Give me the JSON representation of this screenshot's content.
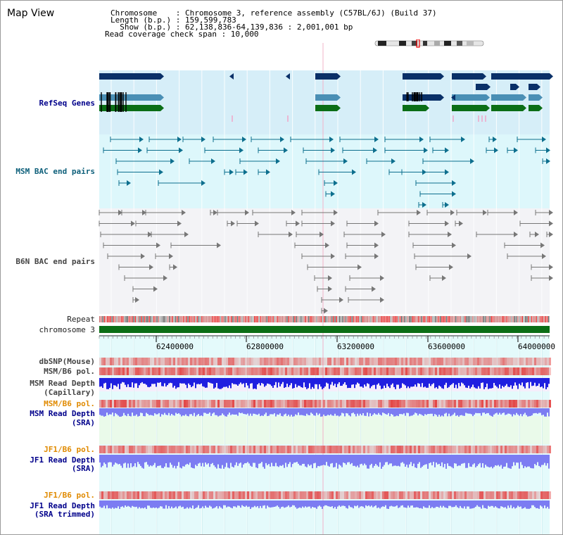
{
  "app": {
    "title": "Map View"
  },
  "header": {
    "chromosome_line": "Chromosome    : Chromosome 3, reference assembly (C57BL/6J) (Build 37)",
    "length_line": "Length (b.p.) : 159,599,783",
    "show_line": "  Show (b.p.) : 62,138,836-64,139,836 : 2,001,001 bp",
    "coverage_line": "Read coverage check span : 10,000"
  },
  "tracks": {
    "refseq": "RefSeq Genes",
    "msm_bac": "MSM BAC end pairs",
    "b6n_bac": "B6N BAC end pairs",
    "repeat": "Repeat",
    "chromosome": "chromosome 3",
    "dbsnp": "dbSNP(Mouse)",
    "msm_pol": "MSM/B6 pol.",
    "msm_depth_cap_1": "MSM Read Depth",
    "msm_depth_cap_2": "(Capillary)",
    "msm_pol_2": "MSM/B6 pol.",
    "msm_depth_sra_1": "MSM Read Depth",
    "msm_depth_sra_2": "(SRA)",
    "jf1_pol": "JF1/B6 pol.",
    "jf1_depth_sra_1": "JF1 Read Depth",
    "jf1_depth_sra_2": "(SRA)",
    "jf1_pol_2": "JF1/B6 pol.",
    "jf1_depth_trim_1": "JF1 Read Depth",
    "jf1_depth_trim_2": "(SRA trimmed)"
  },
  "axis": {
    "ticks": [
      "62400000",
      "62800000",
      "63200000",
      "63600000",
      "64000000"
    ]
  },
  "colors": {
    "refseq_bg": "#d6eef8",
    "msm_bg": "#ddf7fb",
    "gene_dark": "#0a3068",
    "gene_mid": "#4a8fb5",
    "gene_green": "#0b6e16",
    "bac_teal": "#0d6f8e",
    "bac_grey": "#777777",
    "chromosome_bar": "#0b6e16",
    "depth_blue": "#1f1fe0",
    "depth_light": "#7c7cf2",
    "snp_red": "#e33a3a"
  }
}
